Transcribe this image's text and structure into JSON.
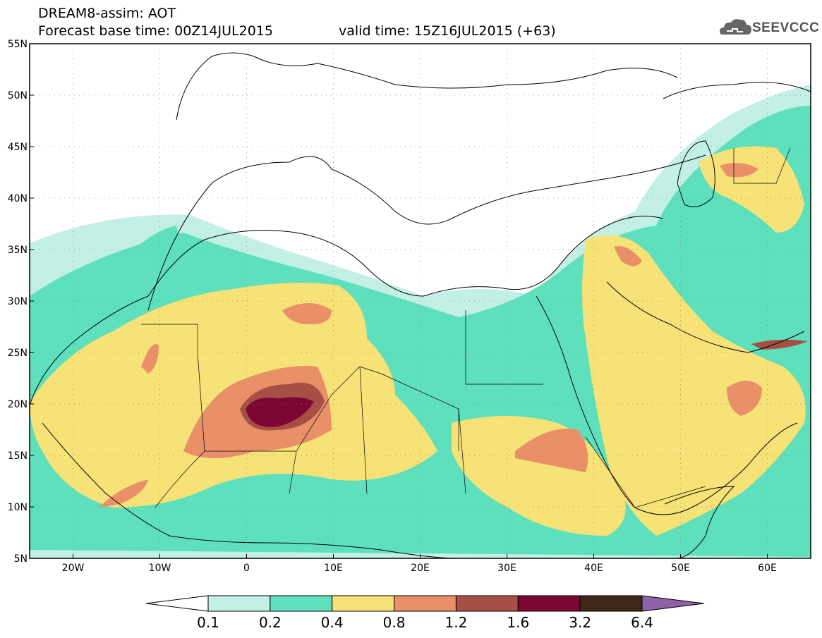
{
  "header": {
    "model_line": "DREAM8-assim: AOT",
    "base_time_line": "Forecast base time: 00Z14JUL2015",
    "valid_time_line": "valid time: 15Z16JUL2015 (+63)"
  },
  "logo": {
    "text": "SEEVCCC",
    "icon": "cloud-icon"
  },
  "map": {
    "projection": "lat-lon",
    "lon_range": [
      -25,
      65
    ],
    "lat_range": [
      5,
      55
    ],
    "lat_labels": [
      "55N",
      "50N",
      "45N",
      "40N",
      "35N",
      "30N",
      "25N",
      "20N",
      "15N",
      "10N",
      "5N"
    ],
    "lon_labels": [
      "20W",
      "10W",
      "0",
      "10E",
      "20E",
      "30E",
      "40E",
      "50E",
      "60E"
    ],
    "ocean_color": "#ffffff",
    "border_color": "#000000"
  },
  "colorbar": {
    "levels": [
      "0.1",
      "0.2",
      "0.4",
      "0.8",
      "1.2",
      "1.6",
      "3.2",
      "6.4"
    ],
    "colors": [
      "#ffffff",
      "#c2efe6",
      "#5ee0bd",
      "#f6e276",
      "#e99069",
      "#a84f45",
      "#7d0733",
      "#3f2618",
      "#8e62a6"
    ]
  }
}
